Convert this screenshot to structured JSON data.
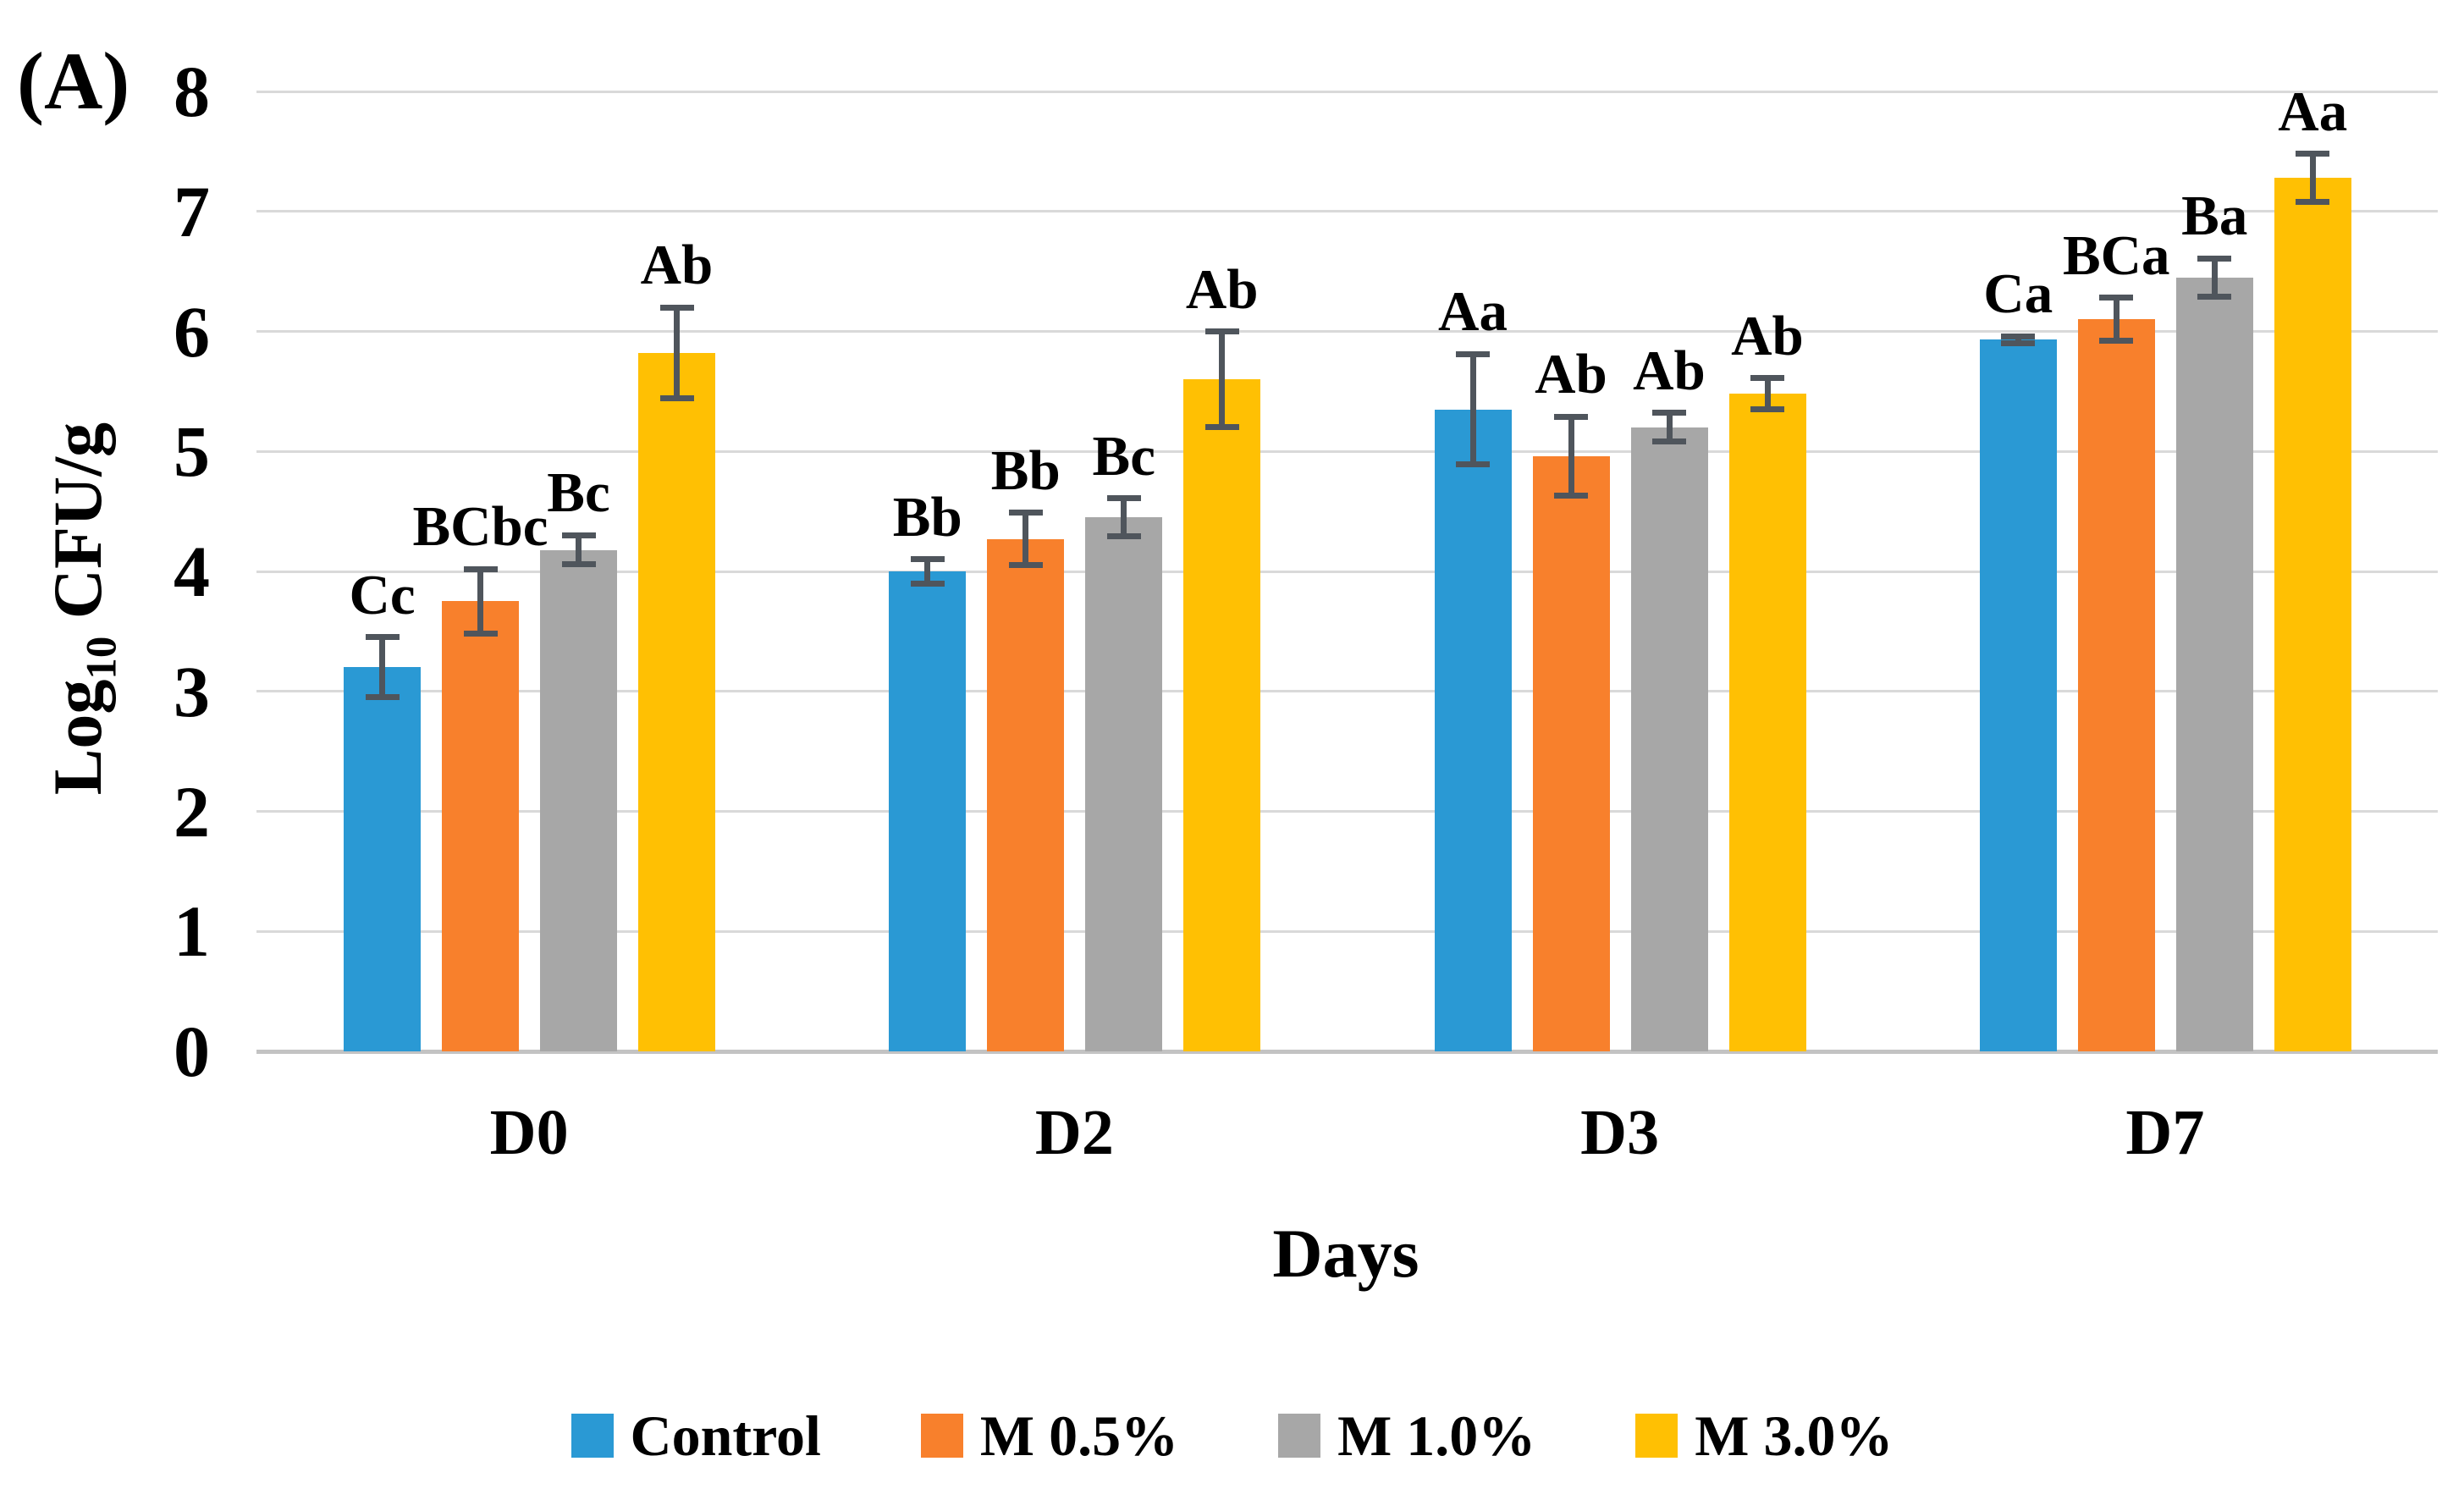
{
  "panel_label": "(A)",
  "y_axis": {
    "title_main": "Log",
    "title_sub": "10",
    "title_rest": " CFU/g",
    "ticks": [
      "0",
      "1",
      "2",
      "3",
      "4",
      "5",
      "6",
      "7",
      "8"
    ],
    "min": 0,
    "max": 8
  },
  "x_axis": {
    "title": "Days"
  },
  "colors": {
    "gridline": "#D9D9D9",
    "baseline": "#C3C3C3",
    "error_bar": "#4F555C"
  },
  "chart_data": {
    "type": "bar",
    "title": "",
    "categories": [
      "D0",
      "D2",
      "D3",
      "D7"
    ],
    "series": [
      {
        "name": "Control",
        "color": "#2A99D4",
        "values": [
          3.2,
          4.0,
          5.35,
          5.93
        ],
        "errors": [
          0.25,
          0.1,
          0.46,
          0.03
        ],
        "sig_labels": [
          "Cc",
          "Bb",
          "Aa",
          "Ca"
        ]
      },
      {
        "name": "M 0.5%",
        "color": "#F8802C",
        "values": [
          3.75,
          4.27,
          4.96,
          6.1
        ],
        "errors": [
          0.27,
          0.22,
          0.33,
          0.18
        ],
        "sig_labels": [
          "BCbc",
          "Bb",
          "Ab",
          "BCa"
        ]
      },
      {
        "name": "M 1.0%",
        "color": "#A7A7A7",
        "values": [
          4.18,
          4.45,
          5.2,
          6.45
        ],
        "errors": [
          0.12,
          0.16,
          0.12,
          0.16
        ],
        "sig_labels": [
          "Bc",
          "Bc",
          "Ab",
          "Ba"
        ]
      },
      {
        "name": "M 3.0%",
        "color": "#FFC003",
        "values": [
          5.82,
          5.6,
          5.48,
          7.28
        ],
        "errors": [
          0.38,
          0.4,
          0.13,
          0.2
        ],
        "sig_labels": [
          "Ab",
          "Ab",
          "Ab",
          "Aa"
        ]
      }
    ],
    "ylabel": "Log10 CFU/g",
    "xlabel": "Days",
    "ylim": [
      0,
      8
    ],
    "grid": true,
    "legend_position": "bottom"
  }
}
